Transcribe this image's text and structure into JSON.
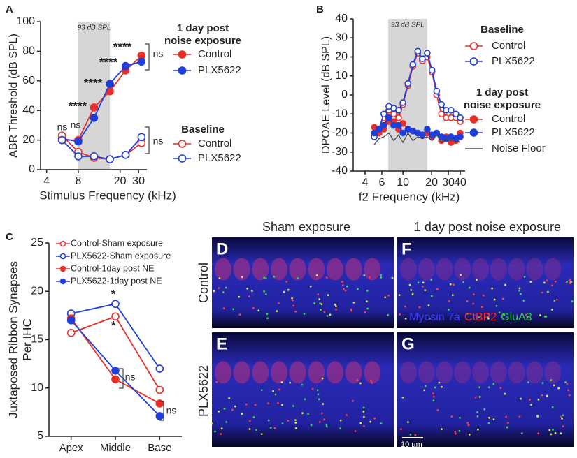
{
  "chart_data": [
    {
      "type": "line",
      "panel": "A",
      "xscale": "log",
      "xlim": [
        3.5,
        36
      ],
      "xticks": [
        4,
        8,
        20,
        30
      ],
      "ylim": [
        0,
        100
      ],
      "yticks": [
        0,
        20,
        40,
        60,
        80,
        100
      ],
      "xlabel": "Stimulus Frequency (kHz)",
      "ylabel": "ABR Threshold (dB SPL)",
      "shade": [
        8,
        16
      ],
      "shade_label": "93 dB SPL",
      "x": [
        5.6,
        8,
        11.3,
        16,
        22.6,
        32
      ],
      "groups": [
        {
          "title_lines": [
            "1 day post",
            "noise exposure"
          ],
          "series": [
            {
              "name": "Control",
              "color": "#e8302a",
              "marker": "filled",
              "values": [
                20,
                20,
                42,
                53,
                67,
                77
              ]
            },
            {
              "name": "PLX5622",
              "color": "#1f3fd8",
              "marker": "filled",
              "values": [
                21,
                19,
                35,
                58,
                70,
                73
              ]
            }
          ]
        },
        {
          "title_lines": [
            "Baseline"
          ],
          "series": [
            {
              "name": "Control",
              "color": "#e8302a",
              "marker": "open",
              "values": [
                23,
                12,
                8,
                7,
                10,
                18
              ]
            },
            {
              "name": "PLX5622",
              "color": "#1f3fd8",
              "marker": "open",
              "values": [
                20,
                9,
                9,
                7,
                10,
                22
              ]
            }
          ]
        }
      ],
      "annotations": [
        "ns",
        "ns",
        "****",
        "****",
        "****",
        "****",
        "ns",
        "ns"
      ]
    },
    {
      "type": "line",
      "panel": "B",
      "xscale": "log",
      "xlim": [
        3,
        45
      ],
      "xticks": [
        4,
        6,
        10,
        20,
        30,
        40
      ],
      "ylim": [
        -40,
        40
      ],
      "yticks": [
        -40,
        -30,
        -20,
        -10,
        0,
        10,
        20,
        30,
        40
      ],
      "xlabel": "f2 Frequency (kHz)",
      "ylabel": "DPOAE Level (dB SPL)",
      "shade": [
        7,
        18
      ],
      "shade_label": "93 dB SPL",
      "x": [
        5,
        5.6,
        6.3,
        7.1,
        8,
        9,
        10,
        11.3,
        12.7,
        14.3,
        16,
        18,
        20.2,
        22.6,
        25.4,
        28.5,
        32,
        36,
        40
      ],
      "groups": [
        {
          "title_lines": [
            "Baseline"
          ],
          "series": [
            {
              "name": "Control",
              "color": "#e8302a",
              "marker": "open",
              "values": [
                -21,
                -20,
                -15,
                -8,
                -10,
                -12,
                -5,
                5,
                15,
                22,
                18,
                20,
                12,
                0,
                -10,
                -12,
                -12,
                -12,
                -14
              ]
            },
            {
              "name": "PLX5622",
              "color": "#1f3fd8",
              "marker": "open",
              "values": [
                -22,
                -18,
                -10,
                -6,
                -7,
                -8,
                -4,
                6,
                16,
                23,
                19,
                22,
                13,
                2,
                -5,
                -8,
                -8,
                -10,
                -12
              ]
            }
          ]
        },
        {
          "title_lines": [
            "1 day post",
            "noise exposure"
          ],
          "series": [
            {
              "name": "Control",
              "color": "#e8302a",
              "marker": "filled",
              "values": [
                -17,
                -20,
                -18,
                -14,
                -14,
                -18,
                -15,
                -18,
                -19,
                -20,
                -21,
                -20,
                -22,
                -20,
                -24,
                -22,
                -25,
                -24,
                -20
              ]
            },
            {
              "name": "PLX5622",
              "color": "#1f3fd8",
              "marker": "filled",
              "values": [
                -20,
                -18,
                -16,
                -12,
                -16,
                -16,
                -20,
                -18,
                -19,
                -20,
                -21,
                -18,
                -21,
                -20,
                -22,
                -23,
                -22,
                -23,
                -22
              ]
            },
            {
              "name": "Noise Floor",
              "color": "#444444",
              "marker": "none",
              "values": [
                -26,
                -23,
                -22,
                -20,
                -24,
                -21,
                -25,
                -20,
                -24,
                -22,
                -23,
                -22,
                -24,
                -21,
                -25,
                -23,
                -24,
                -24,
                -25
              ]
            }
          ]
        }
      ],
      "annotations": []
    },
    {
      "type": "line",
      "panel": "C",
      "categories": [
        "Apex",
        "Middle",
        "Base"
      ],
      "ylim": [
        5,
        25
      ],
      "yticks": [
        5,
        10,
        15,
        20,
        25
      ],
      "ylabel_lines": [
        "Juxtaposed Ribbon Synapses",
        "Per IHC"
      ],
      "groups": [
        {
          "series": [
            {
              "name": "Control-Sham exposure",
              "color": "#e8302a",
              "marker": "open",
              "values": [
                15.7,
                17.4,
                9.8
              ]
            },
            {
              "name": "PLX5622-Sham exposure",
              "color": "#1f3fd8",
              "marker": "open",
              "values": [
                17.7,
                18.7,
                12.0
              ]
            },
            {
              "name": "Control-1day post NE",
              "color": "#e8302a",
              "marker": "filled",
              "values": [
                17.2,
                10.9,
                8.4
              ]
            },
            {
              "name": "PLX5622-1day post NE",
              "color": "#1f3fd8",
              "marker": "filled",
              "values": [
                17.0,
                11.8,
                7.1
              ]
            }
          ]
        }
      ],
      "annotations": [
        "*",
        "*",
        "ns",
        "ns"
      ]
    }
  ],
  "images": {
    "column_titles": [
      "Sham exposure",
      "1 day post noise exposure"
    ],
    "row_titles": [
      "Control",
      "PLX5622"
    ],
    "panels": [
      "D",
      "F",
      "E",
      "G"
    ],
    "stains": [
      {
        "text": "Myosin 7a",
        "color": "#3b3bff"
      },
      {
        "text": "CtBP2",
        "color": "#ff2a2a"
      },
      {
        "text": "GluA3",
        "color": "#2ecc40"
      }
    ],
    "scale_bar": "10 µm"
  }
}
